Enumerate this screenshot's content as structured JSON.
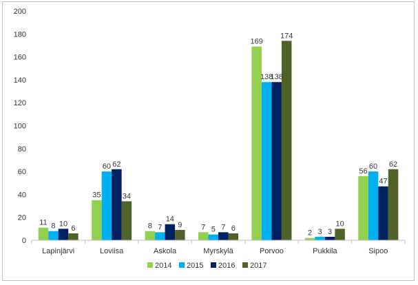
{
  "chart_data": {
    "type": "bar",
    "categories": [
      "Lapinjärvi",
      "Loviisa",
      "Askola",
      "Myrskylä",
      "Porvoo",
      "Pukkila",
      "Sipoo"
    ],
    "series": [
      {
        "name": "2014",
        "color": "#92d050",
        "values": [
          11,
          35,
          8,
          7,
          169,
          2,
          56
        ]
      },
      {
        "name": "2015",
        "color": "#00b0f0",
        "values": [
          8,
          60,
          7,
          5,
          138,
          3,
          60
        ]
      },
      {
        "name": "2016",
        "color": "#002060",
        "values": [
          10,
          62,
          14,
          7,
          138,
          3,
          47
        ]
      },
      {
        "name": "2017",
        "color": "#4f6228",
        "values": [
          6,
          34,
          9,
          6,
          174,
          10,
          62
        ]
      }
    ],
    "ylim": [
      0,
      200
    ],
    "yticks": [
      0,
      20,
      40,
      60,
      80,
      100,
      120,
      140,
      160,
      180,
      200
    ],
    "title": "",
    "xlabel": "",
    "ylabel": "",
    "grid": false,
    "legend_position": "bottom"
  }
}
